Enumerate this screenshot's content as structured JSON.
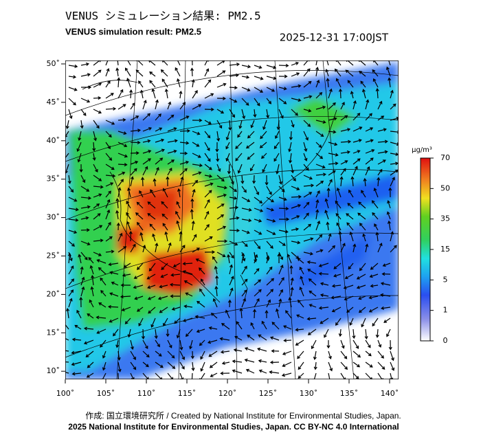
{
  "header": {
    "title": "VENUS シミュレーション結果: PM2.5",
    "subtitle": "VENUS simulation result: PM2.5",
    "timestamp": "2025-12-31 17:00JST"
  },
  "map": {
    "lat_ticks": [
      "50˚",
      "45˚",
      "40˚",
      "35˚",
      "30˚",
      "25˚",
      "20˚",
      "15˚",
      "10˚"
    ],
    "lon_ticks": [
      "100˚",
      "105˚",
      "110˚",
      "115˚",
      "120˚",
      "125˚",
      "130˚",
      "135˚",
      "140˚"
    ]
  },
  "colorbar": {
    "unit": "μg/m³",
    "ticks": [
      "70",
      "50",
      "35",
      "15",
      "5",
      "1",
      "0"
    ]
  },
  "footer": {
    "credit": "作成: 国立環境研究所 / Created by National Institute for Environmental Studies, Japan.",
    "license": "2025 National Institute for Environmental Studies, Japan. CC BY-NC 4.0 International"
  }
}
